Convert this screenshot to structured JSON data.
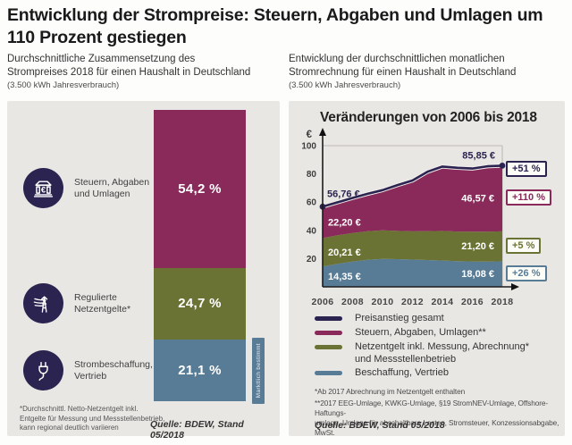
{
  "header": {
    "title_lines": [
      "Entwicklung der Strompreise: Steuern, Abgaben und Umlagen",
      "um 110 Prozent gestiegen"
    ]
  },
  "colors": {
    "navy": "#2b2450",
    "magenta": "#8a2a5a",
    "olive": "#6b7334",
    "steel": "#587c96",
    "panel_bg": "#e9e7e4"
  },
  "left_panel": {
    "subtitle_lines": [
      "Durchschnittliche Zusammensetzung des",
      "Strompreises 2018 für einen Haushalt in Deutschland"
    ],
    "consumption_note": "(3.500 kWh Jahresverbrauch)",
    "footnote_lines": [
      "*Durchschnittl. Netto-Netzentgelt inkl.",
      "Entgelte für Messung und Messstellenbetrieb,",
      "kann regional deutlich variieren"
    ],
    "source": "Quelle: BDEW, Stand 05/2018"
  },
  "right_panel": {
    "subtitle_lines": [
      "Entwicklung der durchschnittlichen monatlichen",
      "Stromrechnung für einen Haushalt in Deutschland"
    ],
    "consumption_note": "(3.500 kWh Jahresverbrauch)",
    "footnote1": "*Ab 2017 Abrechnung im Netzentgelt enthalten",
    "footnote2_lines": [
      "**2017 EEG-Umlage, KWKG-Umlage, §19 StromNEV-Umlage, Offshore-Haftungs-",
      "umlage, Umlage für abschaltbare Lasten, Stromsteuer, Konzessionsabgabe, MwSt."
    ],
    "source": "Quelle: BDEW, Stand 05/2018"
  },
  "chart_data": [
    {
      "id": "strompreis-zusammensetzung-2018",
      "type": "bar",
      "title": "Durchschnittliche Zusammensetzung des Strompreises 2018 für einen Haushalt in Deutschland",
      "unit": "%",
      "segments": [
        {
          "label": "Steuern, Abgaben und Umlagen",
          "value": 54.2,
          "display": "54,2 %",
          "color": "#8a2a5a"
        },
        {
          "label": "Regulierte Netzentgelte*",
          "value": 24.7,
          "display": "24,7 %",
          "color": "#6b7334"
        },
        {
          "label": "Strombeschaffung, Vertrieb",
          "value": 21.1,
          "display": "21,1 %",
          "color": "#587c96"
        }
      ],
      "side_badge": {
        "label": "Marktlich bestimmt",
        "color": "#587c96"
      }
    },
    {
      "id": "monatliche-stromrechnung-2006-2018",
      "type": "area",
      "title": "Veränderungen von 2006 bis 2018",
      "y_axis_symbol": "€",
      "ylim": [
        0,
        100
      ],
      "yticks": [
        20,
        40,
        60,
        80,
        100
      ],
      "x": [
        2006,
        2007,
        2008,
        2009,
        2010,
        2011,
        2012,
        2013,
        2014,
        2015,
        2016,
        2017,
        2018
      ],
      "xticks": [
        2006,
        2008,
        2010,
        2012,
        2014,
        2016,
        2018
      ],
      "series": [
        {
          "name": "Beschaffung, Vertrieb",
          "color": "#587c96",
          "values": [
            14.35,
            16.3,
            17.9,
            19.2,
            19.8,
            19.6,
            19.3,
            19.0,
            18.6,
            18.2,
            18.0,
            17.9,
            18.08
          ],
          "start_label": "14,35 €",
          "end_label": "18,08 €",
          "change_badge": "+26 %"
        },
        {
          "name": "Netzentgelt inkl. Messung, Abrechnung* und Messstellenbetrieb",
          "color": "#6b7334",
          "values": [
            20.21,
            20.2,
            20.2,
            20.2,
            20.2,
            20.0,
            20.0,
            20.5,
            21.0,
            21.0,
            21.1,
            21.2,
            21.2
          ],
          "start_label": "20,21 €",
          "end_label": "21,20 €",
          "change_badge": "+5 %"
        },
        {
          "name": "Steuern, Abgaben, Umlagen**",
          "color": "#8a2a5a",
          "values": [
            22.2,
            23.4,
            24.9,
            26.5,
            28.5,
            32.5,
            36.0,
            42.0,
            45.6,
            45.1,
            44.7,
            46.3,
            46.57
          ],
          "start_label": "22,20 €",
          "end_label": "46,57 €",
          "change_badge": "+110 %"
        }
      ],
      "total_line": {
        "name": "Preisanstieg gesamt",
        "color": "#2b2450",
        "start_value": 56.76,
        "end_value": 85.85,
        "start_label": "56,76 €",
        "end_label": "85,85 €",
        "change_badge": "+51 %"
      },
      "legend": [
        {
          "label": "Preisanstieg gesamt",
          "color": "#2b2450"
        },
        {
          "label": "Steuern, Abgaben, Umlagen**",
          "color": "#8a2a5a"
        },
        {
          "label": "Netzentgelt inkl. Messung, Abrechnung*",
          "label2": "und Messstellenbetrieb",
          "color": "#6b7334"
        },
        {
          "label": "Beschaffung, Vertrieb",
          "color": "#587c96"
        }
      ]
    }
  ]
}
